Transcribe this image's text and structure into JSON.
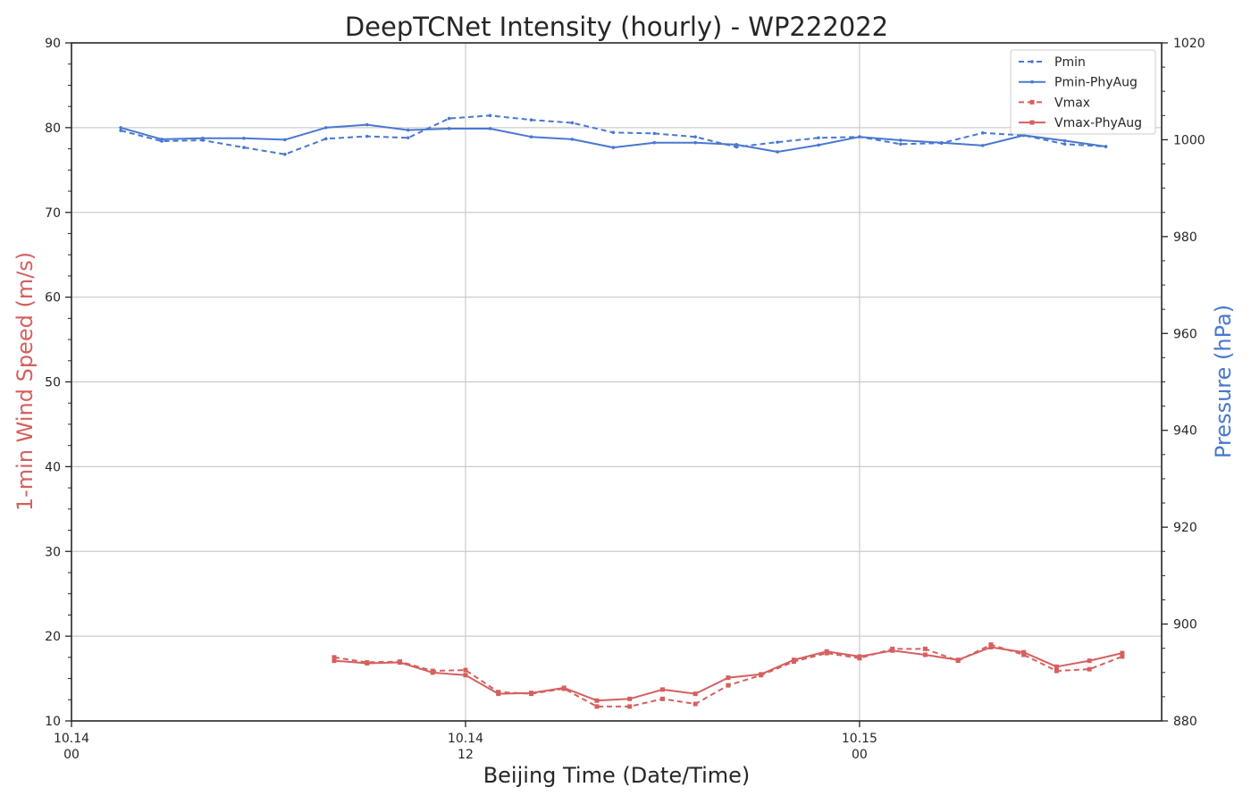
{
  "chart_data": {
    "type": "line",
    "title": "DeepTCNet Intensity (hourly) - WP222022",
    "xlabel": "Beijing Time (Date/Time)",
    "ylabel_left": "1-min Wind Speed (m/s)",
    "ylabel_right": "Pressure (hPa)",
    "x_unit": "hours since 10.14 00",
    "xlim": [
      0,
      33.2
    ],
    "ylim_left": [
      10,
      90
    ],
    "ylim_right": [
      880,
      1020
    ],
    "x_ticks": [
      {
        "x": 0,
        "date": "10.14",
        "hour": "00"
      },
      {
        "x": 12,
        "date": "10.14",
        "hour": "12"
      },
      {
        "x": 24,
        "date": "10.15",
        "hour": "00"
      }
    ],
    "y_left_ticks": [
      10,
      20,
      30,
      40,
      50,
      60,
      70,
      80,
      90
    ],
    "y_right_ticks": [
      880,
      900,
      920,
      940,
      960,
      980,
      1000,
      1020
    ],
    "grid": true,
    "legend_position": "top-right",
    "colors": {
      "pressure": "#4878d0",
      "wind": "#d65f5f",
      "left_label": "#d65f5f",
      "right_label": "#4878d0"
    },
    "series": [
      {
        "name": "Pmin",
        "axis": "right",
        "style": "dashed",
        "marker": "dot",
        "x": [
          1.5,
          2.75,
          4,
          5.25,
          6.5,
          7.75,
          9,
          10.25,
          11.5,
          12.75,
          14,
          15.25,
          16.5,
          17.75,
          19,
          20.25,
          21.5,
          22.75,
          24,
          25.25,
          26.5,
          27.75,
          29,
          30.25,
          31.5
        ],
        "values": [
          1001.9,
          999.7,
          999.9,
          998.4,
          997.0,
          1000.2,
          1000.7,
          1000.4,
          1004.4,
          1005.0,
          1004.1,
          1003.5,
          1001.5,
          1001.3,
          1000.6,
          998.5,
          999.5,
          1000.4,
          1000.6,
          999.1,
          999.3,
          1001.4,
          1000.9,
          999.1,
          998.6
        ]
      },
      {
        "name": "Pmin-PhyAug",
        "axis": "right",
        "style": "solid",
        "marker": "dot",
        "x": [
          1.5,
          2.75,
          4,
          5.25,
          6.5,
          7.75,
          9,
          10.25,
          11.5,
          12.75,
          14,
          15.25,
          16.5,
          17.75,
          19,
          20.25,
          21.5,
          22.75,
          24,
          25.25,
          26.5,
          27.75,
          29,
          30.25,
          31.5
        ],
        "values": [
          1002.5,
          1000.1,
          1000.3,
          1000.3,
          1000.0,
          1002.5,
          1003.1,
          1002.0,
          1002.3,
          1002.3,
          1000.6,
          1000.1,
          998.4,
          999.4,
          999.4,
          999.0,
          997.5,
          998.9,
          1000.6,
          999.9,
          999.4,
          998.8,
          1000.9,
          999.8,
          998.6
        ]
      },
      {
        "name": "Vmax",
        "axis": "left",
        "style": "dashed",
        "marker": "square",
        "x": [
          8,
          9,
          10,
          11,
          12,
          13,
          14,
          15,
          16,
          17,
          18,
          19,
          20,
          21,
          22,
          23,
          24,
          25,
          26,
          27,
          28,
          29,
          30,
          31,
          32
        ],
        "values": [
          17.5,
          16.9,
          17.0,
          15.9,
          16.0,
          13.4,
          13.2,
          13.8,
          11.7,
          11.7,
          12.6,
          12.0,
          14.2,
          15.4,
          17.0,
          18.0,
          17.4,
          18.5,
          18.5,
          17.1,
          19.0,
          17.8,
          15.9,
          16.1,
          17.6
        ]
      },
      {
        "name": "Vmax-PhyAug",
        "axis": "left",
        "style": "solid",
        "marker": "square",
        "x": [
          8,
          9,
          10,
          11,
          12,
          13,
          14,
          15,
          16,
          17,
          18,
          19,
          20,
          21,
          22,
          23,
          24,
          25,
          26,
          27,
          28,
          29,
          30,
          31,
          32
        ],
        "values": [
          17.1,
          16.8,
          16.9,
          15.7,
          15.4,
          13.2,
          13.3,
          13.9,
          12.4,
          12.6,
          13.7,
          13.2,
          15.1,
          15.5,
          17.2,
          18.2,
          17.6,
          18.3,
          17.8,
          17.2,
          18.7,
          18.1,
          16.4,
          17.1,
          18.0
        ]
      }
    ]
  }
}
